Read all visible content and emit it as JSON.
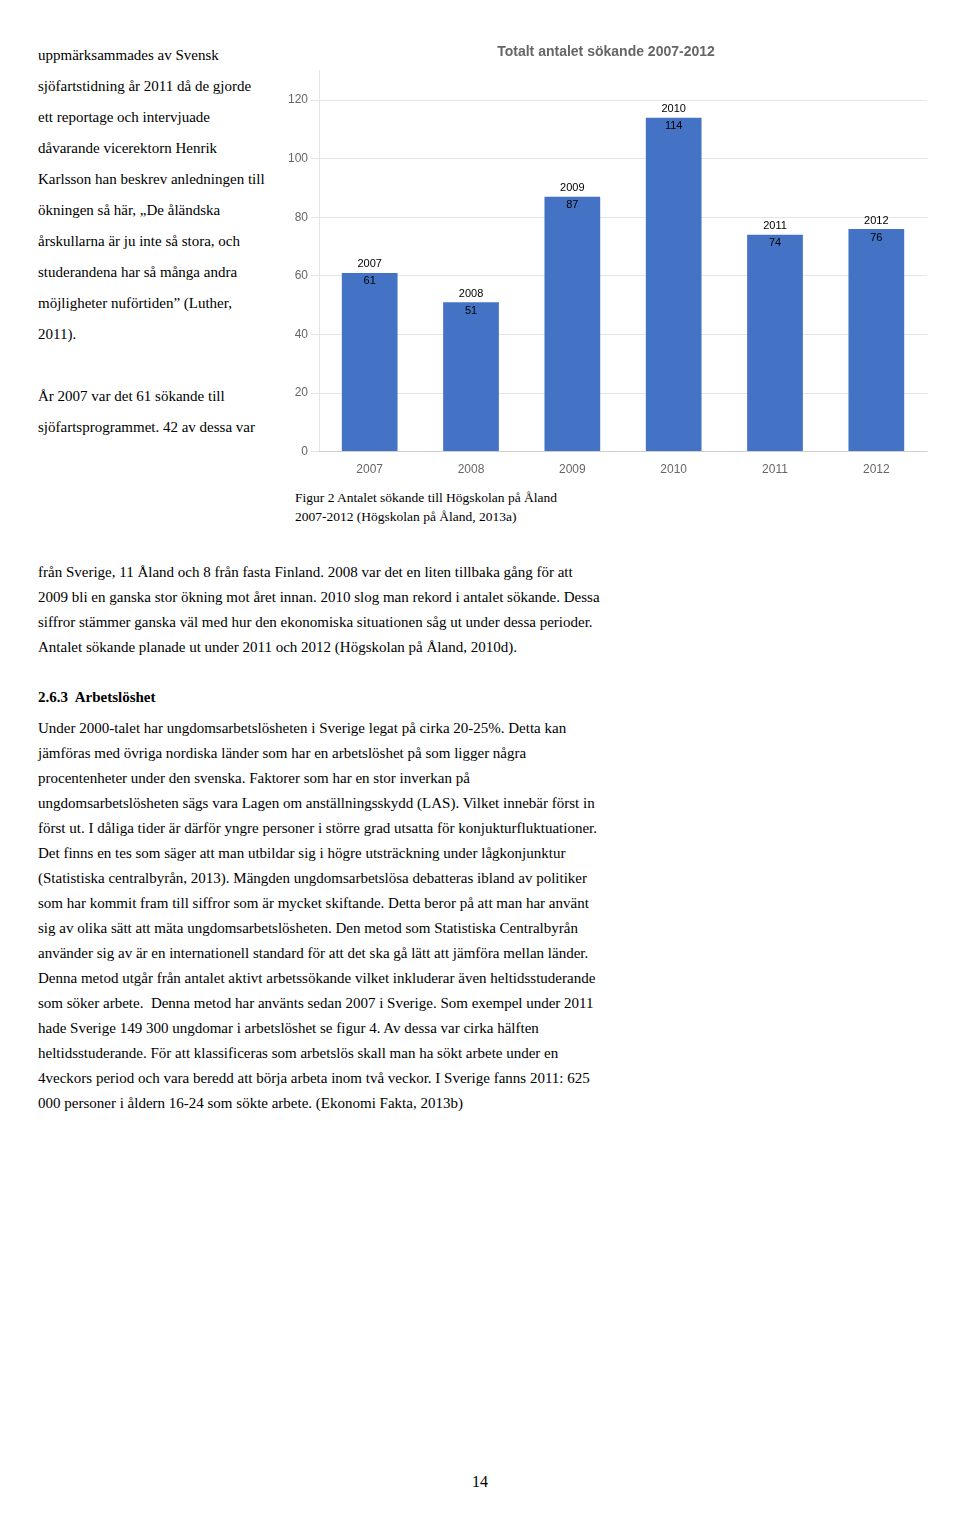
{
  "chart_data": {
    "type": "bar",
    "title": "Totalt antalet sökande 2007-2012",
    "categories": [
      "2007",
      "2008",
      "2009",
      "2010",
      "2011",
      "2012"
    ],
    "values": [
      61,
      51,
      87,
      114,
      74,
      76
    ],
    "color": "#4472C4",
    "ylim": [
      0,
      130
    ],
    "yticks": [
      0,
      20,
      40,
      60,
      80,
      100,
      120
    ],
    "grid": true,
    "data_labels": true
  },
  "page_text": {
    "left_column": [
      [
        "uppmärksammades av Svensk",
        "sjöfartstidning år 2011 då de gjorde",
        "ett reportage och intervjuade",
        "dåvarande vicerektorn Henrik",
        "Karlsson han beskrev anledningen till",
        "ökningen så här, „De åländska",
        "årskullarna är ju inte så stora, och",
        "studerandena har så många andra",
        "möjligheter nuförtiden” (Luther,",
        "2011)."
      ],
      [
        "År 2007 var det 61 sökande till",
        "sjöfartsprogrammet. 42 av dessa var"
      ]
    ],
    "caption": [
      "Figur 2 Antalet sökande till Högskolan på Åland",
      "2007-2012 (Högskolan på Åland, 2013a)"
    ],
    "body": [
      "från Sverige, 11 Åland och 8 från fasta Finland. 2008 var det en liten tillbaka gång för att",
      "2009 bli en ganska stor ökning mot året innan. 2010 slog man rekord i antalet sökande. Dessa",
      "siffror stämmer ganska väl med hur den ekonomiska situationen såg ut under dessa perioder.",
      "Antalet sökande planade ut under 2011 och 2012 (Högskolan på Åland, 2010d)."
    ],
    "heading": "2.6.3  Arbetslöshet",
    "body_after_heading": [
      "Under 2000-talet har ungdomsarbetslösheten i Sverige legat på cirka 20-25%. Detta kan",
      "jämföras med övriga nordiska länder som har en arbetslöshet på som ligger några",
      "procentenheter under den svenska. Faktorer som har en stor inverkan på",
      "ungdomsarbetslösheten sägs vara Lagen om anställningsskydd (LAS). Vilket innebär först in",
      "först ut. I dåliga tider är därför yngre personer i större grad utsatta för konjukturfluktuationer.",
      "Det finns en tes som säger att man utbildar sig i högre utsträckning under lågkonjunktur",
      "(Statistiska centralbyrån, 2013). Mängden ungdomsarbetslösa debatteras ibland av politiker",
      "som har kommit fram till siffror som är mycket skiftande. Detta beror på att man har använt",
      "sig av olika sätt att mäta ungdomsarbetslösheten. Den metod som Statistiska Centralbyrån",
      "använder sig av är en internationell standard för att det ska gå lätt att jämföra mellan länder.",
      "Denna metod utgår från antalet aktivt arbetssökande vilket inkluderar även heltidsstuderande",
      "som söker arbete.  Denna metod har använts sedan 2007 i Sverige. Som exempel under 2011",
      "hade Sverige 149 300 ungdomar i arbetslöshet se figur 4. Av dessa var cirka hälften",
      "heltidsstuderande. För att klassificeras som arbetslös skall man ha sökt arbete under en",
      "4veckors period och vara beredd att börja arbeta inom två veckor. I Sverige fanns 2011: 625",
      "000 personer i åldern 16-24 som sökte arbete. (Ekonomi Fakta, 2013b)"
    ],
    "page_number": "14"
  }
}
